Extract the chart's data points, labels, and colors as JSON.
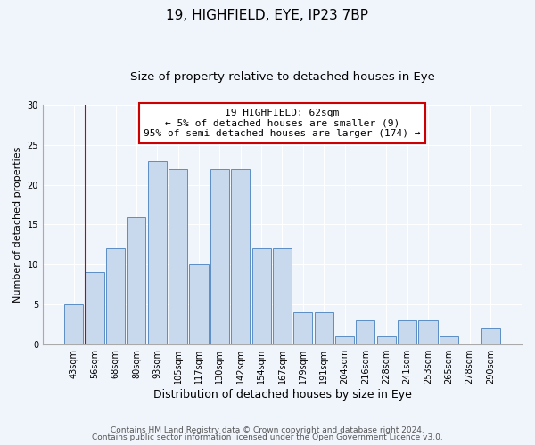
{
  "title": "19, HIGHFIELD, EYE, IP23 7BP",
  "subtitle": "Size of property relative to detached houses in Eye",
  "xlabel": "Distribution of detached houses by size in Eye",
  "ylabel": "Number of detached properties",
  "bar_labels": [
    "43sqm",
    "56sqm",
    "68sqm",
    "80sqm",
    "93sqm",
    "105sqm",
    "117sqm",
    "130sqm",
    "142sqm",
    "154sqm",
    "167sqm",
    "179sqm",
    "191sqm",
    "204sqm",
    "216sqm",
    "228sqm",
    "241sqm",
    "253sqm",
    "265sqm",
    "278sqm",
    "290sqm"
  ],
  "bar_values": [
    5,
    9,
    12,
    16,
    23,
    22,
    10,
    22,
    22,
    12,
    12,
    4,
    4,
    1,
    3,
    1,
    3,
    3,
    1,
    0,
    2
  ],
  "bar_color": "#c9d9ed",
  "bar_edge_color": "#5b8ec4",
  "highlight_bar_index": 1,
  "highlight_color": "#cc0000",
  "ylim": [
    0,
    30
  ],
  "yticks": [
    0,
    5,
    10,
    15,
    20,
    25,
    30
  ],
  "annotation_title": "19 HIGHFIELD: 62sqm",
  "annotation_line1": "← 5% of detached houses are smaller (9)",
  "annotation_line2": "95% of semi-detached houses are larger (174) →",
  "annotation_box_edge": "#cc0000",
  "footer_line1": "Contains HM Land Registry data © Crown copyright and database right 2024.",
  "footer_line2": "Contains public sector information licensed under the Open Government Licence v3.0.",
  "bg_color": "#f0f4fb",
  "grid_color": "#ffffff",
  "title_fontsize": 11,
  "subtitle_fontsize": 9.5,
  "tick_fontsize": 7,
  "ylabel_fontsize": 8,
  "xlabel_fontsize": 9,
  "footer_fontsize": 6.5
}
